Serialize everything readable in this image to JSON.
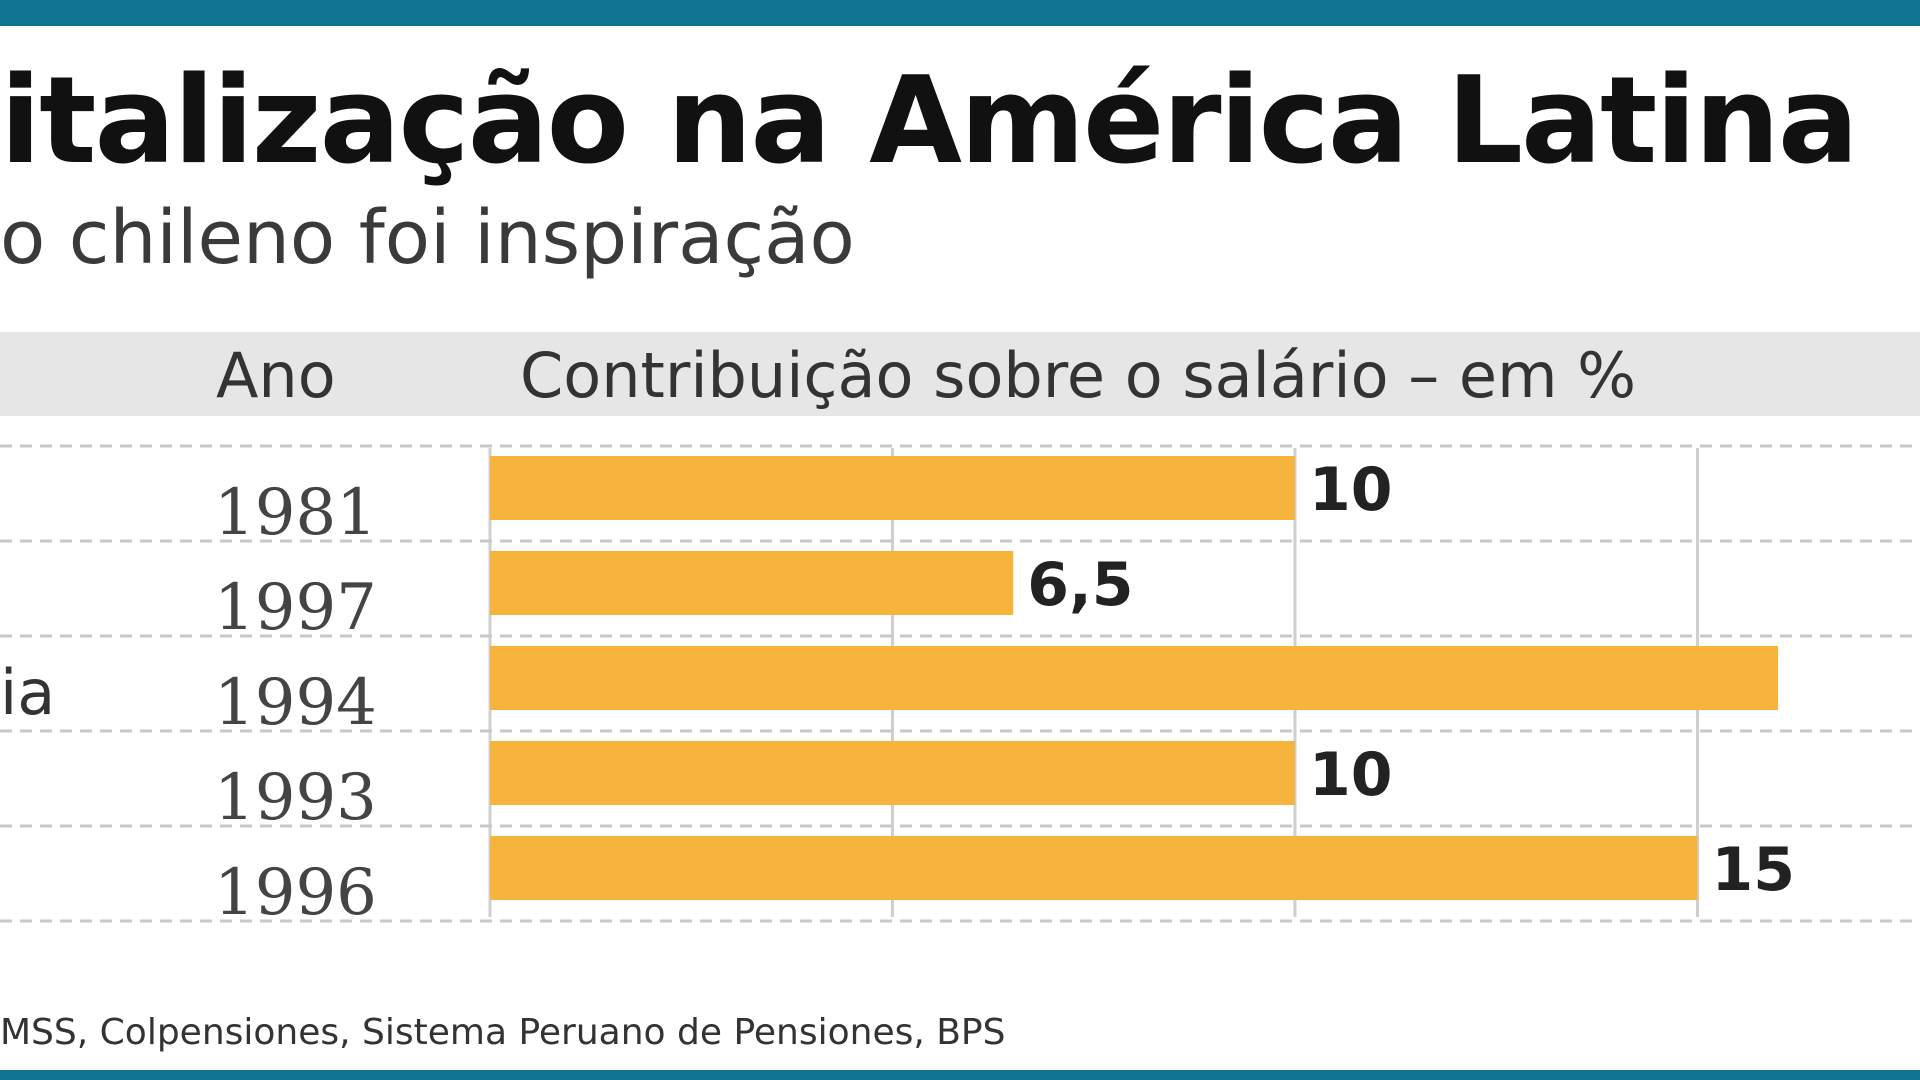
{
  "header": {
    "title": "italização na América Latina",
    "subtitle": "o chileno foi inspiração"
  },
  "table_header": {
    "col_year": "Ano",
    "col_contribution": "Contribuição sobre o salário – em %"
  },
  "rows": [
    {
      "label": "",
      "year": "1981",
      "value": 10,
      "value_label": "10"
    },
    {
      "label": "",
      "year": "1997",
      "value": 6.5,
      "value_label": "6,5"
    },
    {
      "label": "ia",
      "year": "1994",
      "value": 16,
      "value_label": ""
    },
    {
      "label": "",
      "year": "1993",
      "value": 10,
      "value_label": "10"
    },
    {
      "label": "",
      "year": "1996",
      "value": 15,
      "value_label": "15"
    }
  ],
  "source": "MSS, Colpensiones, Sistema Peruano de Pensiones, BPS",
  "colors": {
    "accent": "#0f7590",
    "bar": "#f7b43c",
    "header_band": "#e6e6e6"
  },
  "chart_data": {
    "type": "bar",
    "orientation": "horizontal",
    "title": "italização na América Latina",
    "subtitle": "o chileno foi inspiração",
    "xlabel": "Contribuição sobre o salário – em %",
    "categories": [
      "1981",
      "1997",
      "1994",
      "1993",
      "1996"
    ],
    "values": [
      10,
      6.5,
      16,
      10,
      15
    ],
    "data_labels": [
      "10",
      "6,5",
      "",
      "10",
      "15"
    ],
    "xlim": [
      0,
      16
    ],
    "grid": true,
    "legend": "none"
  }
}
